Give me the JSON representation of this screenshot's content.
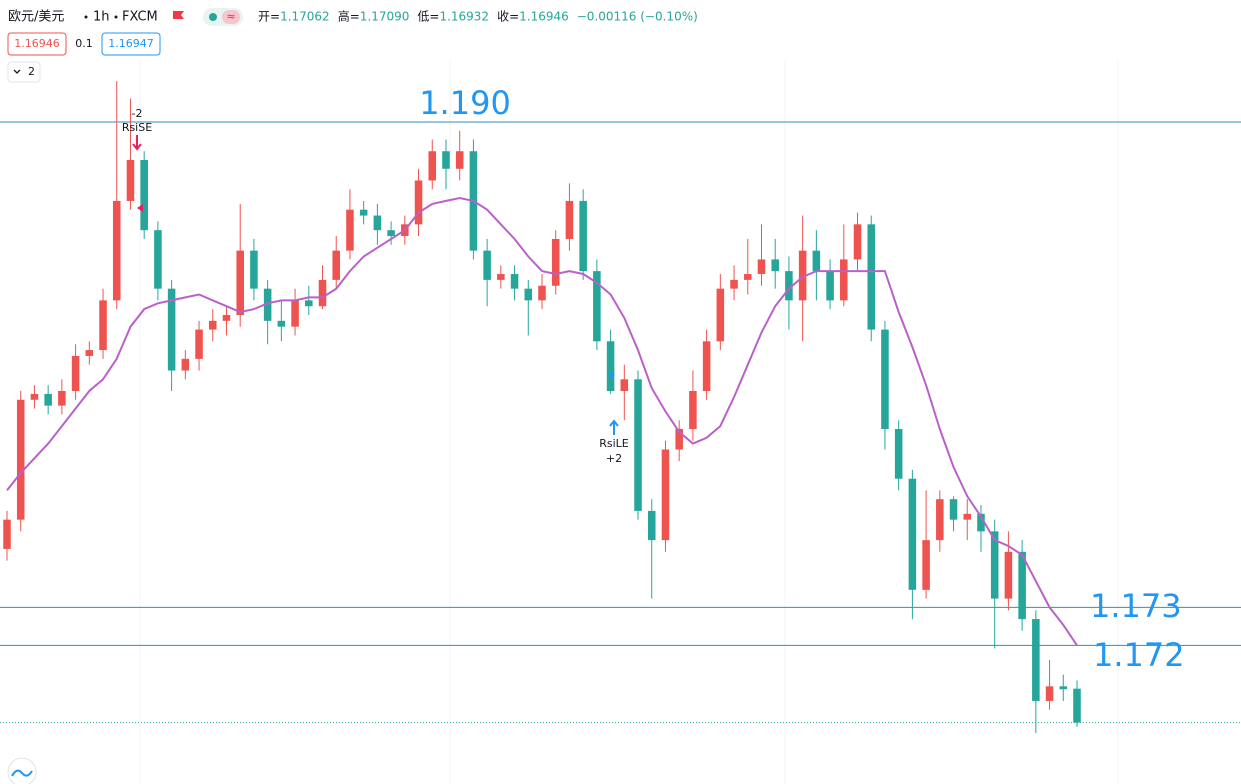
{
  "chart_data": {
    "type": "candlestick",
    "symbol": "欧元/美元",
    "interval": "1h",
    "source": "FXCM",
    "ohlc_header": [
      {
        "label": "开=",
        "value": "1.17062"
      },
      {
        "label": "高=",
        "value": "1.17090"
      },
      {
        "label": "低=",
        "value": "1.16932"
      },
      {
        "label": "收=",
        "value": "1.16946"
      }
    ],
    "change": "−0.00116 (−0.10%)",
    "bid": "1.16946",
    "spread": "0.1",
    "ask": "1.16947",
    "indicator_count": "2",
    "up_color": "#ef5350",
    "down_color": "#26a69a",
    "open": [
      1.1754,
      1.1764,
      1.1805,
      1.1807,
      1.1803,
      1.1808,
      1.182,
      1.1822,
      1.1839,
      1.1873,
      1.1887,
      1.1863,
      1.1843,
      1.1815,
      1.1819,
      1.1829,
      1.1832,
      1.1834,
      1.1856,
      1.1843,
      1.1832,
      1.183,
      1.1839,
      1.1837,
      1.1846,
      1.1856,
      1.187,
      1.1868,
      1.1863,
      1.1861,
      1.1865,
      1.188,
      1.189,
      1.1884,
      1.189,
      1.1856,
      1.1846,
      1.1848,
      1.1843,
      1.1839,
      1.1844,
      1.186,
      1.1873,
      1.1849,
      1.1825,
      1.1808,
      1.1812,
      1.1767,
      1.1757,
      1.1788,
      1.1795,
      1.1808,
      1.1825,
      1.1843,
      1.1846,
      1.1848,
      1.1853,
      1.1849,
      1.1839,
      1.1856,
      1.1849,
      1.1839,
      1.1853,
      1.1865,
      1.1829,
      1.1795,
      1.1778,
      1.174,
      1.1757,
      1.1771,
      1.1764,
      1.1766,
      1.176,
      1.1737,
      1.1753,
      1.173,
      1.1702,
      1.1707,
      1.17062
    ],
    "high": [
      1.1767,
      1.1808,
      1.181,
      1.181,
      1.1812,
      1.1824,
      1.1825,
      1.1843,
      1.1914,
      1.1908,
      1.189,
      1.1866,
      1.1846,
      1.1822,
      1.1832,
      1.1836,
      1.1837,
      1.1872,
      1.186,
      1.1846,
      1.1839,
      1.1843,
      1.1844,
      1.1851,
      1.1861,
      1.1877,
      1.1873,
      1.1872,
      1.1866,
      1.1868,
      1.1884,
      1.1894,
      1.1894,
      1.1897,
      1.1894,
      1.186,
      1.1851,
      1.1851,
      1.1846,
      1.1848,
      1.1863,
      1.1879,
      1.1877,
      1.1853,
      1.1829,
      1.1817,
      1.1815,
      1.1771,
      1.1791,
      1.1798,
      1.1815,
      1.1829,
      1.1848,
      1.1851,
      1.186,
      1.1865,
      1.186,
      1.1854,
      1.1868,
      1.1863,
      1.1853,
      1.1865,
      1.1869,
      1.1868,
      1.1832,
      1.1798,
      1.1781,
      1.1774,
      1.1774,
      1.1772,
      1.1771,
      1.1769,
      1.1764,
      1.176,
      1.1757,
      1.1733,
      1.1716,
      1.1711,
      1.1709
    ],
    "low": [
      1.175,
      1.176,
      1.1802,
      1.18,
      1.18,
      1.1805,
      1.1817,
      1.1819,
      1.1836,
      1.187,
      1.186,
      1.1839,
      1.1808,
      1.1812,
      1.1815,
      1.1825,
      1.1827,
      1.183,
      1.1839,
      1.1824,
      1.1825,
      1.1827,
      1.1834,
      1.1836,
      1.1843,
      1.1853,
      1.1865,
      1.1858,
      1.1858,
      1.1858,
      1.1861,
      1.1877,
      1.1877,
      1.188,
      1.1853,
      1.1837,
      1.1843,
      1.1839,
      1.1827,
      1.1836,
      1.1841,
      1.1856,
      1.1846,
      1.1822,
      1.1807,
      1.1798,
      1.1764,
      1.1737,
      1.1753,
      1.1784,
      1.1791,
      1.1805,
      1.1822,
      1.1839,
      1.1841,
      1.1844,
      1.1843,
      1.1829,
      1.1825,
      1.1839,
      1.1836,
      1.1837,
      1.1849,
      1.1825,
      1.1788,
      1.1774,
      1.173,
      1.1737,
      1.1753,
      1.176,
      1.1757,
      1.1753,
      1.172,
      1.1733,
      1.1726,
      1.1691,
      1.1699,
      1.1702,
      1.16932
    ],
    "close": [
      1.1764,
      1.1805,
      1.1807,
      1.1803,
      1.1808,
      1.182,
      1.1822,
      1.1839,
      1.1873,
      1.1887,
      1.1863,
      1.1843,
      1.1815,
      1.1819,
      1.1829,
      1.1832,
      1.1834,
      1.1856,
      1.1843,
      1.1832,
      1.183,
      1.1839,
      1.1837,
      1.1846,
      1.1856,
      1.187,
      1.1868,
      1.1863,
      1.1861,
      1.1865,
      1.188,
      1.189,
      1.1884,
      1.189,
      1.1856,
      1.1846,
      1.1848,
      1.1843,
      1.1839,
      1.1844,
      1.186,
      1.1873,
      1.1849,
      1.1825,
      1.1808,
      1.1812,
      1.1767,
      1.1757,
      1.1788,
      1.1795,
      1.1808,
      1.1825,
      1.1843,
      1.1846,
      1.1848,
      1.1853,
      1.1849,
      1.1839,
      1.1856,
      1.1849,
      1.1839,
      1.1853,
      1.1865,
      1.1829,
      1.1795,
      1.1778,
      1.174,
      1.1757,
      1.1771,
      1.1764,
      1.1766,
      1.176,
      1.1737,
      1.1753,
      1.173,
      1.1702,
      1.1707,
      1.1706,
      1.16946
    ],
    "ma": {
      "color": "#b961c9",
      "values": [
        1.1774,
        1.178,
        1.1785,
        1.179,
        1.1796,
        1.1802,
        1.1808,
        1.1812,
        1.1819,
        1.183,
        1.1836,
        1.1838,
        1.1839,
        1.184,
        1.1841,
        1.1839,
        1.1837,
        1.1835,
        1.1836,
        1.1838,
        1.1839,
        1.1839,
        1.184,
        1.184,
        1.1843,
        1.1849,
        1.1854,
        1.1857,
        1.186,
        1.1863,
        1.1869,
        1.1872,
        1.1873,
        1.1874,
        1.1873,
        1.187,
        1.1865,
        1.186,
        1.1854,
        1.1849,
        1.1848,
        1.1849,
        1.1848,
        1.1845,
        1.1841,
        1.1833,
        1.1822,
        1.1809,
        1.1801,
        1.1794,
        1.179,
        1.1792,
        1.1796,
        1.1806,
        1.1817,
        1.1828,
        1.1837,
        1.1843,
        1.1847,
        1.1849,
        1.1849,
        1.1849,
        1.1849,
        1.1849,
        1.1849,
        1.1835,
        1.1823,
        1.181,
        1.1795,
        1.1782,
        1.1772,
        1.1765,
        1.1757,
        1.1755,
        1.1752,
        1.1743,
        1.1734,
        1.1728,
        1.1721
      ]
    },
    "levels": [
      {
        "value": 1.19,
        "label": "1.190"
      },
      {
        "value": 1.1734,
        "label": "1.173"
      },
      {
        "value": 1.1721,
        "label": "1.172"
      }
    ],
    "level_color": "#2f8fb5",
    "level_label_color": "#2196f3",
    "last_price": 1.16946,
    "signals": [
      {
        "name": "RsiSE",
        "qty": "-2",
        "color": "#e91e63"
      },
      {
        "name": "RsiLE",
        "qty": "+2",
        "color": "#2196f3"
      }
    ],
    "ylim": [
      1.16736,
      1.19212
    ]
  }
}
